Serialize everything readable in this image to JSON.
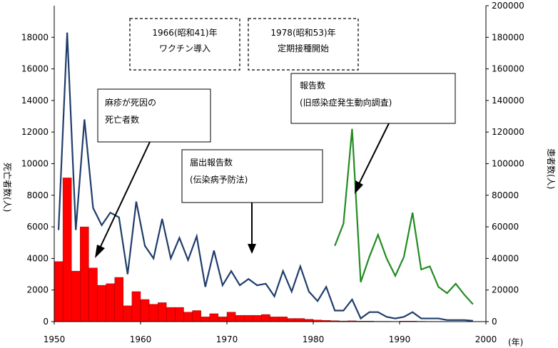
{
  "chart_data": {
    "type": "bar+line",
    "x_range": [
      1950,
      2000
    ],
    "x_ticks": [
      "1950",
      "1960",
      "1970",
      "1980",
      "1990",
      "2000"
    ],
    "x_unit_label": "(年)",
    "y_left": {
      "label": "死亡者数(人)",
      "range": [
        0,
        20000
      ],
      "ticks": [
        "0",
        "2000",
        "4000",
        "6000",
        "8000",
        "10000",
        "12000",
        "14000",
        "16000",
        "18000"
      ]
    },
    "y_right": {
      "label": "患者数(人)",
      "range": [
        0,
        200000
      ],
      "ticks": [
        "0",
        "20000",
        "40000",
        "60000",
        "80000",
        "100000",
        "120000",
        "140000",
        "160000",
        "180000",
        "200000"
      ]
    },
    "deaths": {
      "axis": "left",
      "color": "#ff0000",
      "years": [
        1950,
        1951,
        1952,
        1953,
        1954,
        1955,
        1956,
        1957,
        1958,
        1959,
        1960,
        1961,
        1962,
        1963,
        1964,
        1965,
        1966,
        1967,
        1968,
        1969,
        1970,
        1971,
        1972,
        1973,
        1974,
        1975,
        1976,
        1977,
        1978,
        1979,
        1980,
        1981,
        1982,
        1983,
        1984,
        1985,
        1986,
        1987,
        1988,
        1989,
        1990,
        1991,
        1992,
        1993,
        1994,
        1995,
        1996,
        1997,
        1998,
        1999
      ],
      "values": [
        3800,
        9100,
        3200,
        6000,
        3400,
        2300,
        2400,
        2800,
        1000,
        1900,
        1400,
        1100,
        1200,
        900,
        900,
        600,
        700,
        300,
        500,
        300,
        600,
        400,
        400,
        400,
        450,
        300,
        300,
        200,
        200,
        150,
        100,
        80,
        60,
        40,
        50,
        30,
        30,
        20,
        20,
        15,
        30,
        30,
        20,
        15,
        15,
        10,
        10,
        10,
        10,
        5
      ]
    },
    "reported_cases": {
      "axis": "right",
      "color": "#1f3d6b",
      "years": [
        1950,
        1951,
        1952,
        1953,
        1954,
        1955,
        1956,
        1957,
        1958,
        1959,
        1960,
        1961,
        1962,
        1963,
        1964,
        1965,
        1966,
        1967,
        1968,
        1969,
        1970,
        1971,
        1972,
        1973,
        1974,
        1975,
        1976,
        1977,
        1978,
        1979,
        1980,
        1981,
        1982,
        1983,
        1984,
        1985,
        1986,
        1987,
        1988,
        1989,
        1990,
        1991,
        1992,
        1993,
        1994,
        1995,
        1996,
        1997,
        1998
      ],
      "values": [
        58000,
        183000,
        58000,
        128000,
        72000,
        61000,
        69000,
        66000,
        30000,
        76000,
        48000,
        40000,
        65000,
        40000,
        53000,
        39000,
        54000,
        22000,
        45000,
        23000,
        32000,
        23000,
        27000,
        23000,
        24000,
        16000,
        32000,
        19000,
        35000,
        19000,
        13000,
        22000,
        7000,
        7000,
        14000,
        2000,
        6000,
        6000,
        3000,
        2000,
        3000,
        6000,
        2000,
        2000,
        2000,
        1000,
        1000,
        1000,
        500
      ]
    },
    "surveillance_cases": {
      "axis": "right",
      "color": "#228b22",
      "years": [
        1982,
        1983,
        1984,
        1985,
        1986,
        1987,
        1988,
        1989,
        1990,
        1991,
        1992,
        1993,
        1994,
        1995,
        1996,
        1997,
        1998
      ],
      "values": [
        48000,
        62000,
        122000,
        25000,
        41000,
        55000,
        40000,
        29000,
        41000,
        69000,
        33000,
        35000,
        22000,
        18000,
        24000,
        17000,
        11000
      ]
    },
    "annotations": [
      {
        "text": "1966(昭和41)年",
        "text2": "ワクチン導入"
      },
      {
        "text": "1978(昭和53)年",
        "text2": "定期接種開始"
      },
      {
        "text": "麻疹が死因の",
        "text2": "死亡者数"
      },
      {
        "text": "届出報告数",
        "text2": "(伝染病予防法)"
      },
      {
        "text": "報告数",
        "text2": "(旧感染症発生動向調査)"
      }
    ]
  }
}
